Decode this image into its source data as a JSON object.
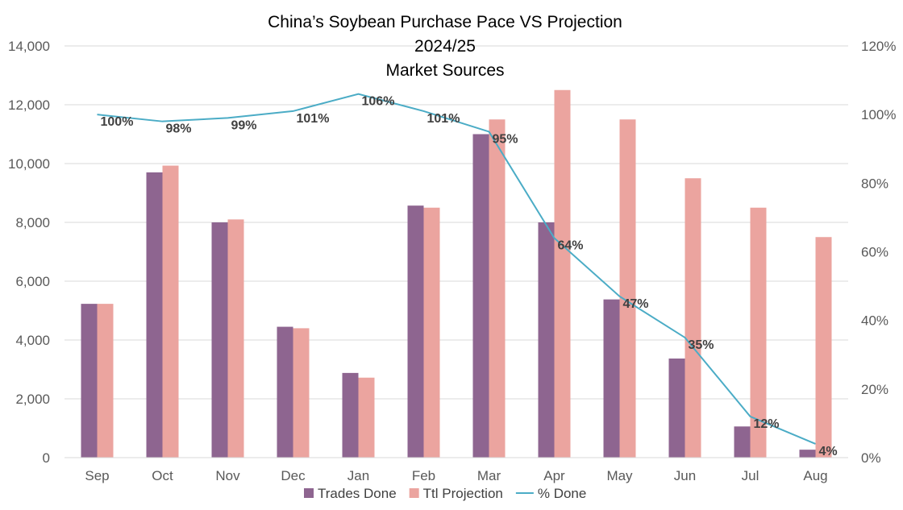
{
  "chart_data": {
    "type": "bar",
    "title_lines": [
      "China’s Soybean Purchase Pace VS Projection",
      "2024/25",
      "Market Sources"
    ],
    "categories": [
      "Sep",
      "Oct",
      "Nov",
      "Dec",
      "Jan",
      "Feb",
      "Mar",
      "Apr",
      "May",
      "Jun",
      "Jul",
      "Aug"
    ],
    "series": [
      {
        "name": "Trades Done",
        "kind": "bar",
        "axis": "left",
        "color": "#8e6590",
        "values": [
          5230,
          9700,
          8000,
          4450,
          2880,
          8570,
          11000,
          8000,
          5380,
          3370,
          1060,
          270
        ]
      },
      {
        "name": "Ttl Projection",
        "kind": "bar",
        "axis": "left",
        "color": "#eba49f",
        "values": [
          5230,
          9930,
          8100,
          4400,
          2720,
          8500,
          11500,
          12500,
          11500,
          9500,
          8500,
          7500
        ]
      },
      {
        "name": "% Done",
        "kind": "line",
        "axis": "right",
        "color": "#4bacc6",
        "values": [
          100,
          98,
          99,
          101,
          106,
          101,
          95,
          64,
          47,
          35,
          12,
          4
        ],
        "labels": [
          "100%",
          "98%",
          "99%",
          "101%",
          "106%",
          "101%",
          "95%",
          "64%",
          "47%",
          "35%",
          "12%",
          "4%"
        ]
      }
    ],
    "y_left": {
      "min": 0,
      "max": 14000,
      "ticks": [
        "0",
        "2,000",
        "4,000",
        "6,000",
        "8,000",
        "10,000",
        "12,000",
        "14,000"
      ],
      "tick_values": [
        0,
        2000,
        4000,
        6000,
        8000,
        10000,
        12000,
        14000
      ]
    },
    "y_right": {
      "min": 0,
      "max": 120,
      "ticks": [
        "0%",
        "20%",
        "40%",
        "60%",
        "80%",
        "100%",
        "120%"
      ],
      "tick_values": [
        0,
        20,
        40,
        60,
        80,
        100,
        120
      ]
    },
    "xlabel": "",
    "ylabel": "",
    "grid": true,
    "legend_position": "bottom"
  }
}
